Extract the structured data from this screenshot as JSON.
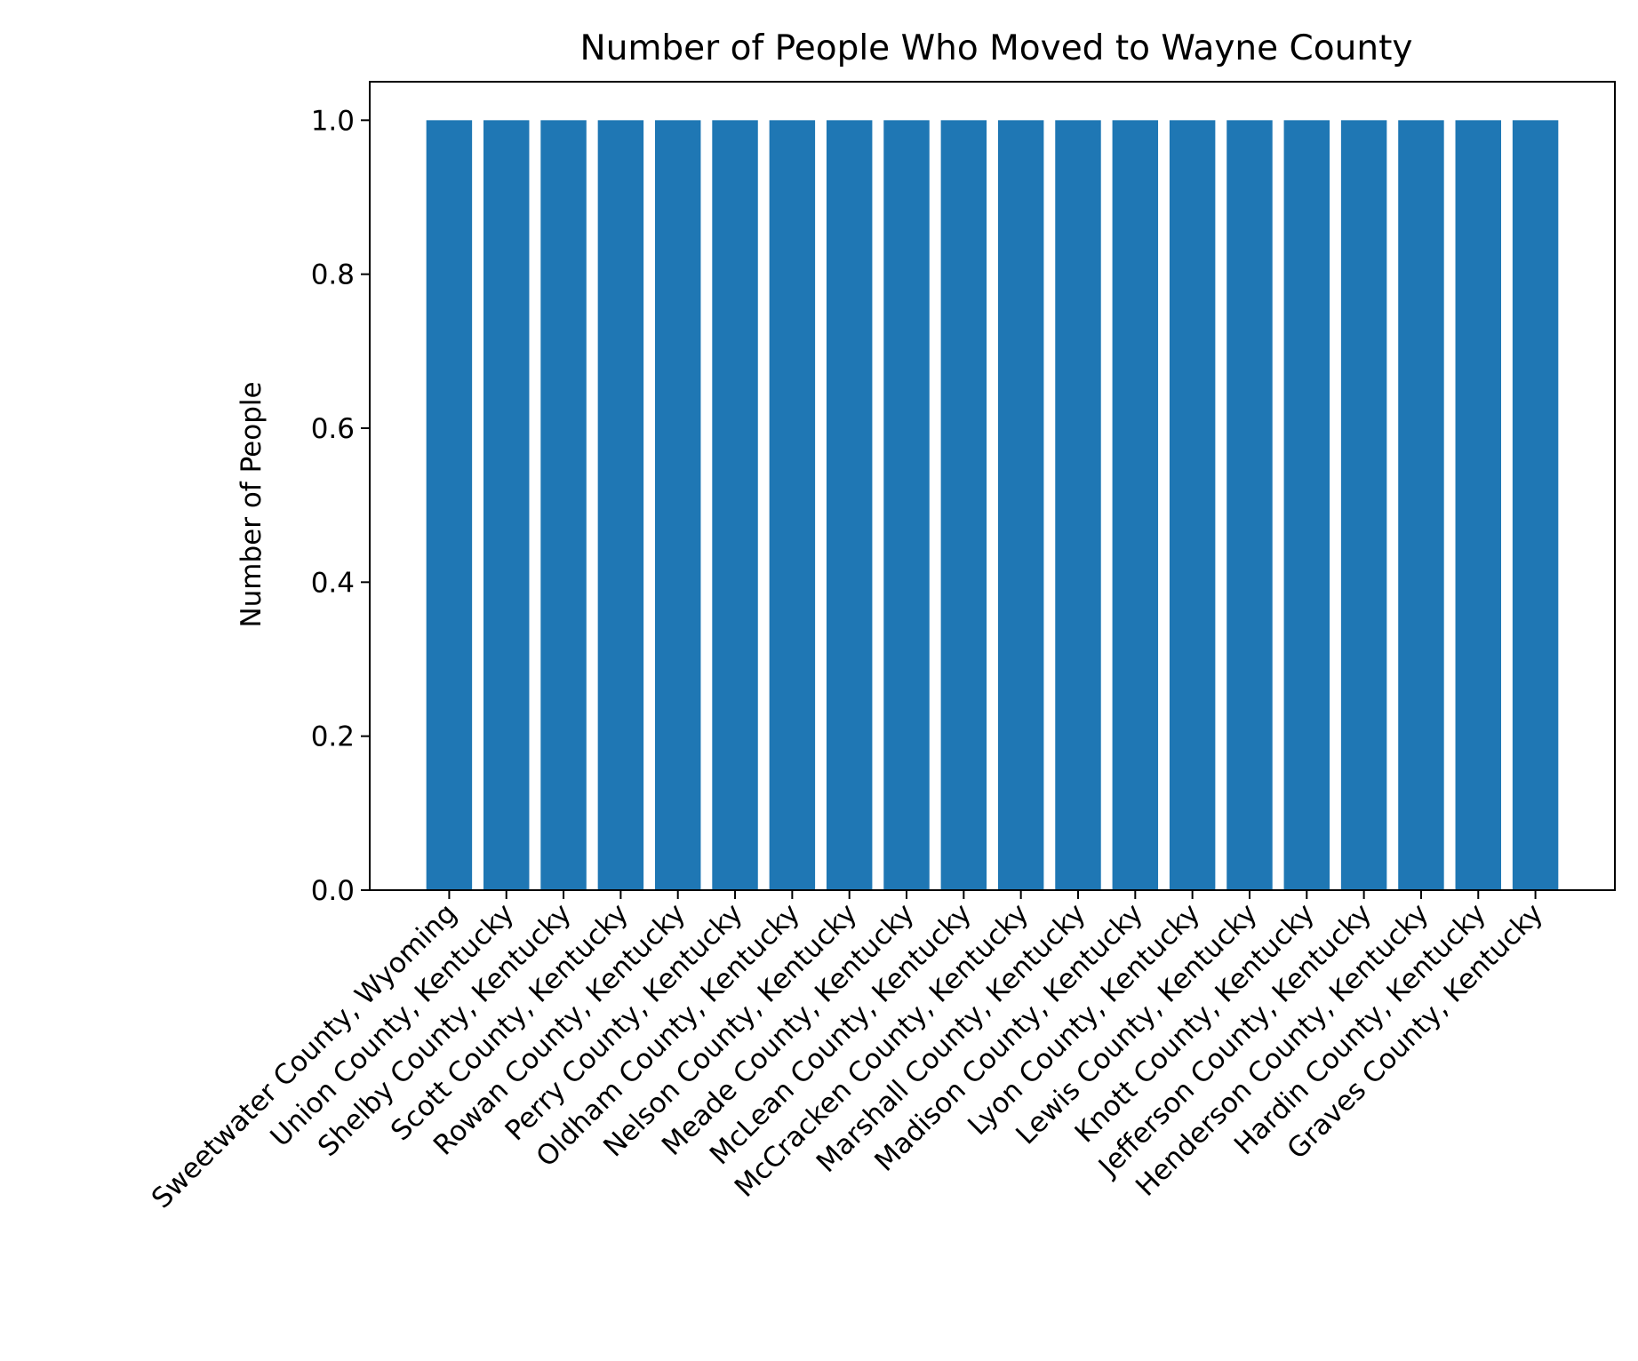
{
  "chart_data": {
    "type": "bar",
    "title": "Number of People Who Moved to Wayne County",
    "xlabel": "",
    "ylabel": "Number of People",
    "ylim": [
      0,
      1.05
    ],
    "yticks": [
      0.0,
      0.2,
      0.4,
      0.6,
      0.8,
      1.0
    ],
    "ytick_labels": [
      "0.0",
      "0.2",
      "0.4",
      "0.6",
      "0.8",
      "1.0"
    ],
    "grid": false,
    "bar_color": "#1f77b4",
    "categories": [
      "Sweetwater County, Wyoming",
      "Union County, Kentucky",
      "Shelby County, Kentucky",
      "Scott County, Kentucky",
      "Rowan County, Kentucky",
      "Perry County, Kentucky",
      "Oldham County, Kentucky",
      "Nelson County, Kentucky",
      "Meade County, Kentucky",
      "McLean County, Kentucky",
      "McCracken County, Kentucky",
      "Marshall County, Kentucky",
      "Madison County, Kentucky",
      "Lyon County, Kentucky",
      "Lewis County, Kentucky",
      "Knott County, Kentucky",
      "Jefferson County, Kentucky",
      "Henderson County, Kentucky",
      "Hardin County, Kentucky",
      "Graves County, Kentucky"
    ],
    "values": [
      1,
      1,
      1,
      1,
      1,
      1,
      1,
      1,
      1,
      1,
      1,
      1,
      1,
      1,
      1,
      1,
      1,
      1,
      1,
      1
    ]
  }
}
